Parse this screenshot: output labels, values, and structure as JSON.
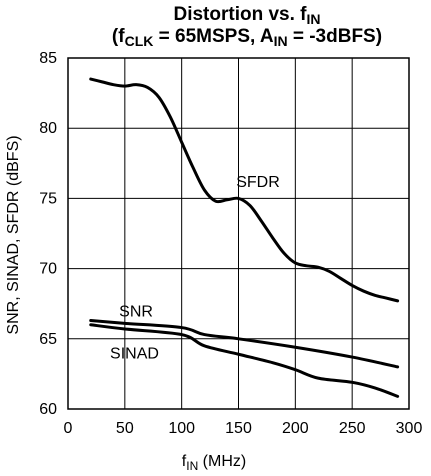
{
  "chart_data": {
    "type": "line",
    "title": {
      "line1_main": "Distortion vs. f",
      "line1_sub": "IN",
      "line2_prefix": "(f",
      "line2_clk_sub": "CLK",
      "line2_mid": " = 65MSPS, A",
      "line2_in_sub": "IN",
      "line2_suffix": " = -3dBFS)"
    },
    "xlabel": {
      "main": "f",
      "sub": "IN",
      "suffix": " (MHz)"
    },
    "ylabel": "SNR, SINAD, SFDR (dBFS)",
    "xlim": [
      0,
      300
    ],
    "ylim": [
      60,
      85
    ],
    "x_ticks": [
      "0",
      "50",
      "100",
      "150",
      "200",
      "250",
      "300"
    ],
    "y_ticks": [
      "60",
      "65",
      "70",
      "75",
      "80",
      "85"
    ],
    "grid": true,
    "series": [
      {
        "name": "SFDR",
        "points": [
          [
            20,
            83.5
          ],
          [
            30,
            83.3
          ],
          [
            40,
            83.1
          ],
          [
            50,
            83.0
          ],
          [
            60,
            83.1
          ],
          [
            70,
            82.9
          ],
          [
            80,
            82.2
          ],
          [
            90,
            80.8
          ],
          [
            100,
            79.0
          ],
          [
            110,
            77.2
          ],
          [
            120,
            75.6
          ],
          [
            130,
            74.8
          ],
          [
            140,
            74.9
          ],
          [
            150,
            75.0
          ],
          [
            160,
            74.5
          ],
          [
            170,
            73.4
          ],
          [
            180,
            72.2
          ],
          [
            190,
            71.1
          ],
          [
            200,
            70.4
          ],
          [
            210,
            70.2
          ],
          [
            220,
            70.1
          ],
          [
            230,
            69.8
          ],
          [
            240,
            69.3
          ],
          [
            250,
            68.8
          ],
          [
            260,
            68.4
          ],
          [
            270,
            68.1
          ],
          [
            280,
            67.9
          ],
          [
            290,
            67.7
          ]
        ]
      },
      {
        "name": "SNR",
        "points": [
          [
            20,
            66.3
          ],
          [
            50,
            66.1
          ],
          [
            100,
            65.8
          ],
          [
            120,
            65.3
          ],
          [
            150,
            65.0
          ],
          [
            200,
            64.4
          ],
          [
            250,
            63.7
          ],
          [
            290,
            63.0
          ]
        ]
      },
      {
        "name": "SINAD",
        "points": [
          [
            20,
            66.0
          ],
          [
            50,
            65.7
          ],
          [
            100,
            65.3
          ],
          [
            120,
            64.5
          ],
          [
            150,
            63.9
          ],
          [
            180,
            63.3
          ],
          [
            200,
            62.8
          ],
          [
            220,
            62.2
          ],
          [
            250,
            61.9
          ],
          [
            270,
            61.5
          ],
          [
            290,
            60.9
          ]
        ]
      }
    ]
  }
}
